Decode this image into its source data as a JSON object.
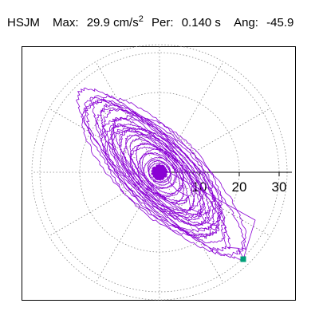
{
  "header": {
    "station": "HSJM",
    "max_label": "Max:",
    "max_value": "29.9 cm/s",
    "max_exp": "2",
    "per_label": "Per:",
    "per_value": "0.140 s",
    "ang_label": "Ang:",
    "ang_value": "-45.9"
  },
  "colors": {
    "trace": "#8a00d4",
    "end_marker": "#00a07a",
    "grid": "#888888",
    "axis": "#000000"
  },
  "chart_data": {
    "type": "line",
    "title": "",
    "xlabel": "",
    "ylabel": "",
    "coordinate_system": "polar particle-motion (horizontal acceleration)",
    "unit": "cm/s^2",
    "radial_max": 32,
    "radial_ticks": [
      10,
      20,
      30
    ],
    "radial_tick_labels": [
      "10",
      "20",
      "30"
    ],
    "angular_grid_step_deg": 30,
    "grid": true,
    "max_amplitude": 29.9,
    "predominant_period_s": 0.14,
    "major_axis_angle_deg": -45.9,
    "end_point": {
      "x": 21.0,
      "y": -21.8
    },
    "series": [
      {
        "loops": [
          {
            "a": 28.5,
            "b": 7.5,
            "angle": -46
          },
          {
            "a": 26.0,
            "b": 9.5,
            "angle": -44
          },
          {
            "a": 24.0,
            "b": 6.0,
            "angle": -48
          },
          {
            "a": 21.0,
            "b": 8.0,
            "angle": -43
          },
          {
            "a": 18.0,
            "b": 5.0,
            "angle": -47
          },
          {
            "a": 15.0,
            "b": 6.5,
            "angle": -45
          },
          {
            "a": 12.0,
            "b": 4.0,
            "angle": -50
          },
          {
            "a": 9.0,
            "b": 5.0,
            "angle": -40
          },
          {
            "a": 6.0,
            "b": 3.5,
            "angle": -46
          },
          {
            "a": 3.5,
            "b": 2.5,
            "angle": -45
          }
        ]
      }
    ]
  }
}
